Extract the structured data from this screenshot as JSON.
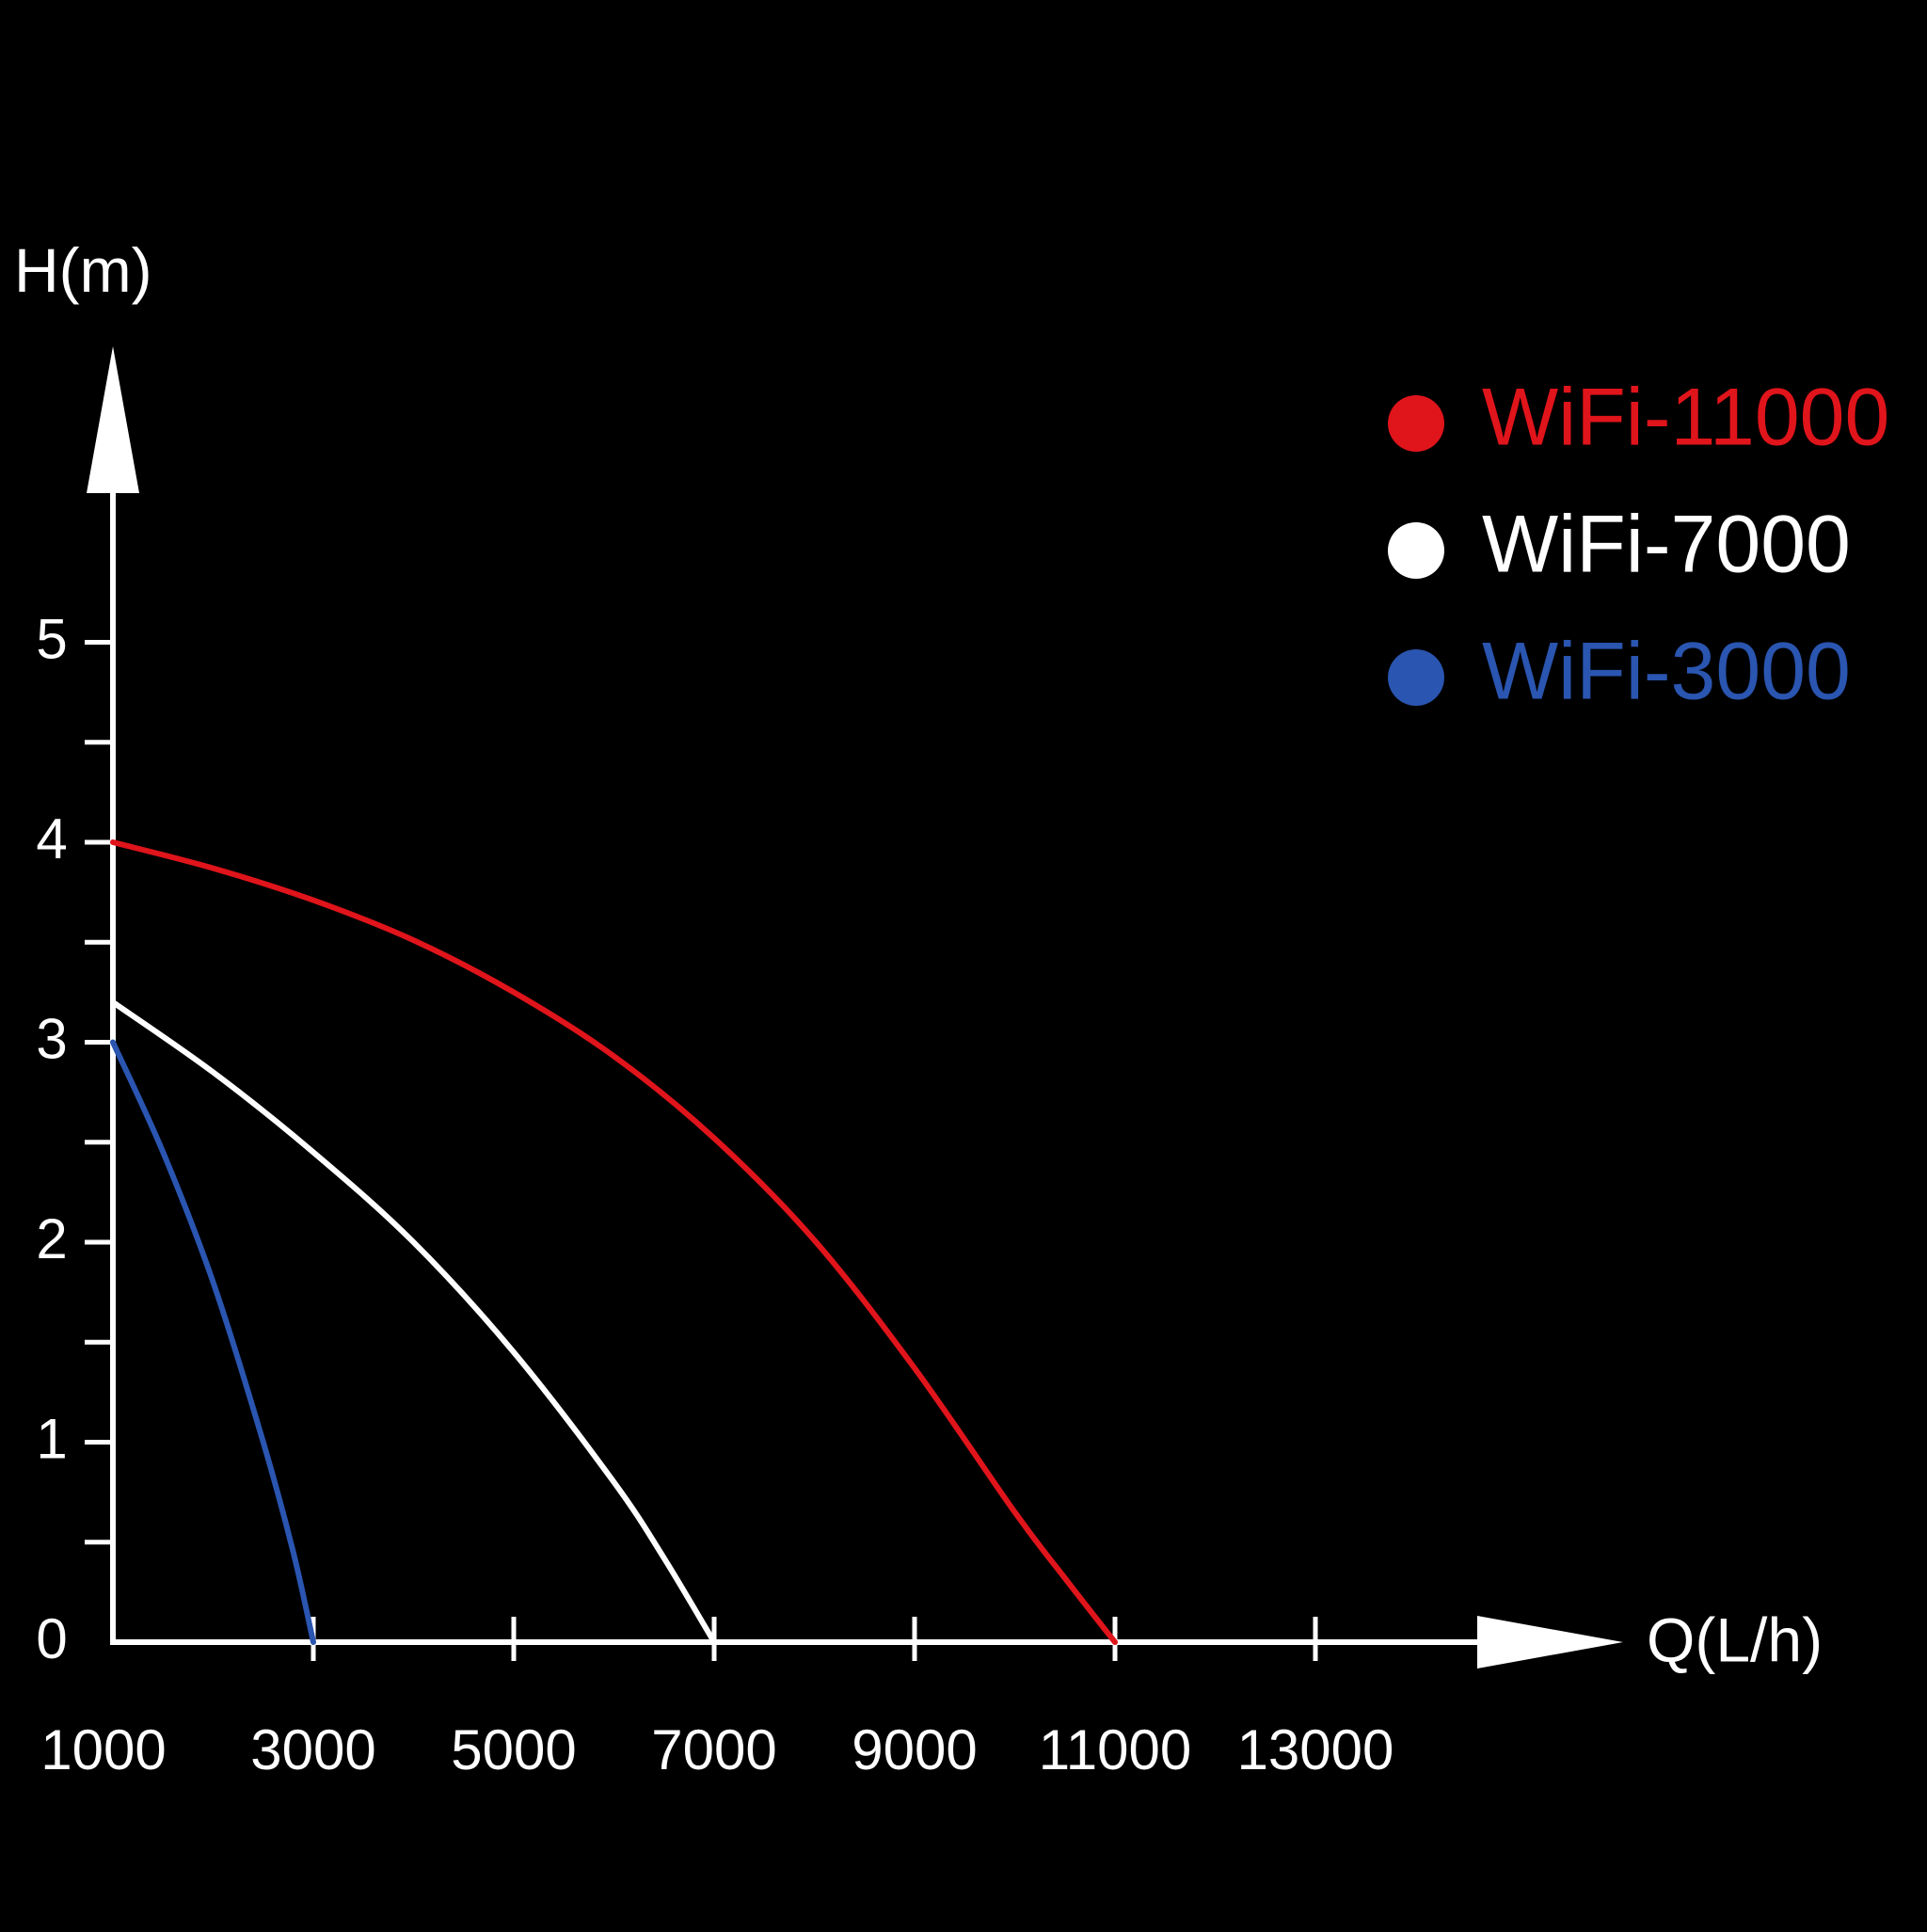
{
  "background": "#000000",
  "axis_color": "#ffffff",
  "chart_data": {
    "type": "line",
    "title": "",
    "xlabel": "Q(L/h)",
    "ylabel": "H(m)",
    "xlim": [
      1000,
      15000
    ],
    "ylim": [
      0,
      5.8
    ],
    "x_ticks": [
      1000,
      3000,
      5000,
      7000,
      9000,
      11000,
      13000
    ],
    "x_tick_labels": [
      "1000",
      "3000",
      "5000",
      "7000",
      "9000",
      "11000",
      "13000"
    ],
    "y_ticks": [
      0,
      1,
      2,
      3,
      4,
      5
    ],
    "y_tick_labels": [
      "0",
      "1",
      "2",
      "3",
      "4",
      "5"
    ],
    "y_minor_ticks": [
      0.5,
      1.5,
      2.5,
      3.5,
      4.5
    ],
    "grid": false,
    "legend_position": "top-right",
    "series": [
      {
        "name": "WiFi-11000",
        "color": "#e0141b",
        "x": [
          1000,
          2000,
          3000,
          4000,
          5000,
          6000,
          7000,
          8000,
          9000,
          10000,
          10500,
          11000
        ],
        "y": [
          4.0,
          3.87,
          3.71,
          3.51,
          3.25,
          2.93,
          2.52,
          2.01,
          1.37,
          0.65,
          0.32,
          0.0
        ]
      },
      {
        "name": "WiFi-7000",
        "color": "#ffffff",
        "x": [
          1000,
          2000,
          3000,
          4000,
          5000,
          6000,
          6500,
          7000
        ],
        "y": [
          3.2,
          2.85,
          2.45,
          2.0,
          1.45,
          0.8,
          0.42,
          0.0
        ]
      },
      {
        "name": "WiFi-3000",
        "color": "#2a55b0",
        "x": [
          1000,
          1500,
          2000,
          2500,
          2800,
          3000
        ],
        "y": [
          3.0,
          2.45,
          1.8,
          1.0,
          0.45,
          0.0
        ]
      }
    ]
  }
}
